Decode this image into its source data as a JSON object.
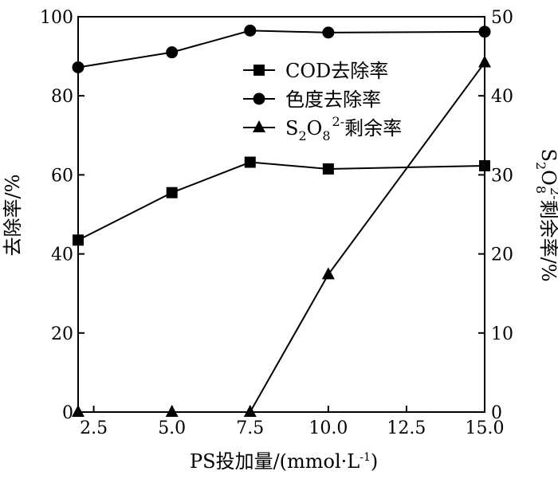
{
  "chart_data": {
    "type": "line",
    "x": [
      2.0,
      5.0,
      7.5,
      10.0,
      15.0
    ],
    "xlabel": "PS投加量/(mmol·L",
    "xlabel_sup": "-1",
    "xlabel_close": ")",
    "xlim": [
      2.0,
      15.0
    ],
    "xticks": [
      "2.5",
      "5.0",
      "7.5",
      "10.0",
      "12.5",
      "15.0"
    ],
    "xtick_values": [
      2.5,
      5.0,
      7.5,
      10.0,
      12.5,
      15.0
    ],
    "ylabel_left": "去除率/%",
    "ylim_left": [
      0,
      100
    ],
    "yticks_left": [
      "0",
      "20",
      "40",
      "60",
      "80",
      "100"
    ],
    "ylabel_right": {
      "s": "S",
      "sub2": "2",
      "o": "O",
      "sub8": "8",
      "sup": "2-",
      "rest": "剩余率/%"
    },
    "ylim_right": [
      0,
      50
    ],
    "yticks_right": [
      "0",
      "10",
      "20",
      "30",
      "40",
      "50"
    ],
    "legend_position": "top-center",
    "grid": false,
    "series": [
      {
        "name": "COD去除率",
        "marker": "square",
        "axis": "left",
        "values": [
          43.5,
          55.5,
          63.2,
          61.5,
          62.3
        ]
      },
      {
        "name": "色度去除率",
        "marker": "circle",
        "axis": "left",
        "values": [
          87.2,
          91.0,
          96.5,
          96.0,
          96.2
        ]
      },
      {
        "name_parts": {
          "s": "S",
          "sub2": "2",
          "o": "O",
          "sub8": "8",
          "sup": "2-",
          "rest": "剩余率"
        },
        "marker": "triangle",
        "axis": "right",
        "values": [
          0,
          0,
          0,
          17.4,
          44.2
        ]
      }
    ]
  }
}
